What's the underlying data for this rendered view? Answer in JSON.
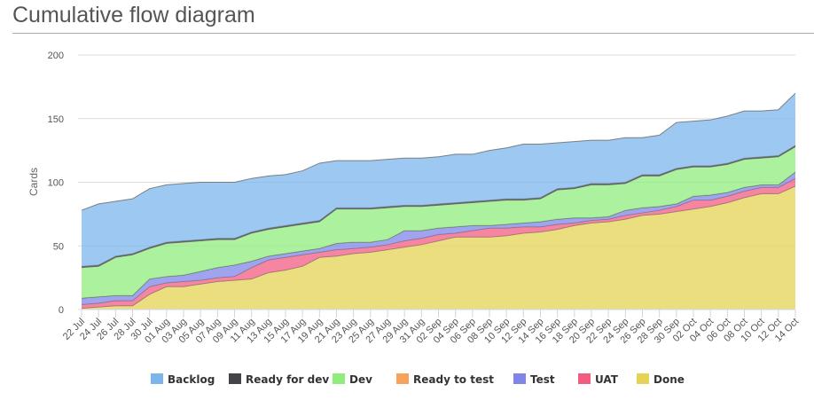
{
  "chart_data": {
    "type": "area",
    "stacked": true,
    "title": "Cumulative flow diagram",
    "xlabel": "",
    "ylabel": "Cards",
    "ylim": [
      0,
      200
    ],
    "yticks": [
      0,
      50,
      100,
      150,
      200
    ],
    "grid": true,
    "legend_position": "bottom",
    "categories": [
      "22 Jul",
      "24 Jul",
      "26 Jul",
      "28 Jul",
      "30 Jul",
      "01 Aug",
      "03 Aug",
      "05 Aug",
      "07 Aug",
      "09 Aug",
      "11 Aug",
      "13 Aug",
      "15 Aug",
      "17 Aug",
      "19 Aug",
      "21 Aug",
      "23 Aug",
      "25 Aug",
      "27 Aug",
      "29 Aug",
      "31 Aug",
      "02 Sep",
      "04 Sep",
      "06 Sep",
      "08 Sep",
      "10 Sep",
      "12 Sep",
      "14 Sep",
      "16 Sep",
      "18 Sep",
      "20 Sep",
      "22 Sep",
      "24 Sep",
      "26 Sep",
      "28 Sep",
      "30 Sep",
      "02 Oct",
      "04 Oct",
      "06 Oct",
      "08 Oct",
      "10 Oct",
      "12 Oct",
      "14 Oct"
    ],
    "series": [
      {
        "name": "Backlog",
        "color": "#7cb5ec",
        "values": [
          44,
          48,
          43,
          43,
          46,
          45,
          45,
          45,
          44,
          44,
          42,
          41,
          40,
          41,
          45,
          37,
          37,
          37,
          37,
          37,
          37,
          37,
          38,
          37,
          39,
          40,
          43,
          42,
          36,
          36,
          34,
          34,
          35,
          29,
          31,
          36,
          35,
          36,
          37,
          37,
          36,
          36,
          41
        ]
      },
      {
        "name": "Ready for dev",
        "color": "#434348",
        "values": [
          1,
          1,
          1,
          1,
          1,
          1,
          1,
          1,
          1,
          1,
          1,
          1,
          1,
          1,
          1,
          1,
          1,
          1,
          1,
          1,
          1,
          1,
          1,
          1,
          1,
          1,
          1,
          1,
          1,
          1,
          1,
          1,
          1,
          1,
          1,
          1,
          1,
          1,
          1,
          1,
          1,
          1,
          1
        ]
      },
      {
        "name": "Dev",
        "color": "#90ed7d",
        "values": [
          24,
          24,
          30,
          32,
          24,
          26,
          26,
          24,
          22,
          20,
          22,
          21,
          21,
          21,
          21,
          27,
          26,
          26,
          25,
          19,
          19,
          18,
          18,
          18,
          19,
          19,
          18,
          18,
          23,
          23,
          26,
          25,
          21,
          25,
          24,
          27,
          23,
          22,
          22,
          22,
          21,
          22,
          20
        ]
      },
      {
        "name": "Ready to test",
        "color": "#f7a35c",
        "values": [
          0,
          0,
          0,
          0,
          0,
          0,
          0,
          0,
          0,
          0,
          0,
          0,
          0,
          0,
          0,
          0,
          0,
          0,
          0,
          0,
          0,
          0,
          0,
          0,
          0,
          0,
          0,
          0,
          0,
          0,
          0,
          0,
          0,
          0,
          0,
          0,
          0,
          0,
          0,
          0,
          0,
          0,
          0
        ]
      },
      {
        "name": "Test",
        "color": "#8085e9",
        "values": [
          5,
          5,
          4,
          4,
          6,
          5,
          5,
          7,
          8,
          9,
          5,
          3,
          3,
          3,
          3,
          5,
          5,
          4,
          4,
          8,
          6,
          5,
          5,
          4,
          2,
          3,
          3,
          4,
          4,
          4,
          2,
          2,
          4,
          4,
          3,
          2,
          3,
          4,
          3,
          3,
          2,
          2,
          5
        ]
      },
      {
        "name": "UAT",
        "color": "#f15c80",
        "values": [
          3,
          3,
          4,
          4,
          6,
          3,
          4,
          3,
          3,
          3,
          9,
          10,
          10,
          9,
          4,
          5,
          4,
          4,
          4,
          5,
          5,
          5,
          3,
          5,
          7,
          6,
          5,
          4,
          4,
          2,
          2,
          2,
          3,
          2,
          3,
          4,
          7,
          5,
          5,
          5,
          5,
          5,
          6
        ]
      },
      {
        "name": "Done",
        "color": "#e4d354",
        "values": [
          1,
          2,
          3,
          3,
          12,
          18,
          18,
          20,
          22,
          23,
          24,
          29,
          31,
          34,
          41,
          42,
          44,
          45,
          47,
          49,
          51,
          54,
          57,
          57,
          57,
          58,
          60,
          61,
          63,
          66,
          68,
          69,
          71,
          74,
          75,
          77,
          79,
          81,
          84,
          88,
          91,
          91,
          97
        ]
      }
    ]
  }
}
